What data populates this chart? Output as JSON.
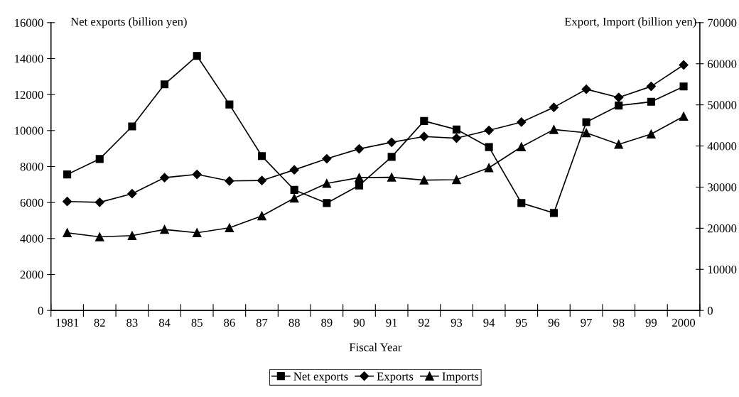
{
  "chart_data": {
    "type": "line",
    "xlabel": "Fiscal Year",
    "ylabel": "Net exports (billion yen)",
    "y2label": "Export, Import (billion yen)",
    "categories": [
      "1981",
      "82",
      "83",
      "84",
      "85",
      "86",
      "87",
      "88",
      "89",
      "90",
      "91",
      "92",
      "93",
      "94",
      "95",
      "96",
      "97",
      "98",
      "99",
      "2000"
    ],
    "series": [
      {
        "name": "Net exports",
        "color": "#000000",
        "marker": "square",
        "values": [
          7560,
          8420,
          10230,
          12570,
          14150,
          11450,
          8580,
          6700,
          5970,
          6950,
          8540,
          10530,
          10060,
          9080,
          5970,
          5420,
          10470,
          11390,
          11600,
          12450
        ]
      },
      {
        "name": "Exports",
        "color": "#000000",
        "marker": "diamond",
        "axis": "y2",
        "values": [
          26500,
          26300,
          28400,
          32300,
          33100,
          31500,
          31600,
          34200,
          36900,
          39300,
          40900,
          42300,
          41900,
          43800,
          45800,
          49400,
          53800,
          51800,
          54500,
          59700
        ]
      },
      {
        "name": "Imports",
        "color": "#000000",
        "marker": "triangle",
        "axis": "y2",
        "values": [
          18900,
          17900,
          18200,
          19700,
          18900,
          20100,
          23000,
          27300,
          30900,
          32300,
          32400,
          31700,
          31800,
          34700,
          39800,
          44000,
          43200,
          40400,
          42900,
          47200
        ]
      }
    ],
    "ylim": [
      0,
      16000
    ],
    "yticks": [
      0,
      2000,
      4000,
      6000,
      8000,
      10000,
      12000,
      14000,
      16000
    ],
    "y2lim": [
      0,
      70000
    ],
    "y2ticks": [
      0,
      10000,
      20000,
      30000,
      40000,
      50000,
      60000,
      70000
    ],
    "grid": false,
    "legend": "bottom",
    "line_style": "solid"
  }
}
